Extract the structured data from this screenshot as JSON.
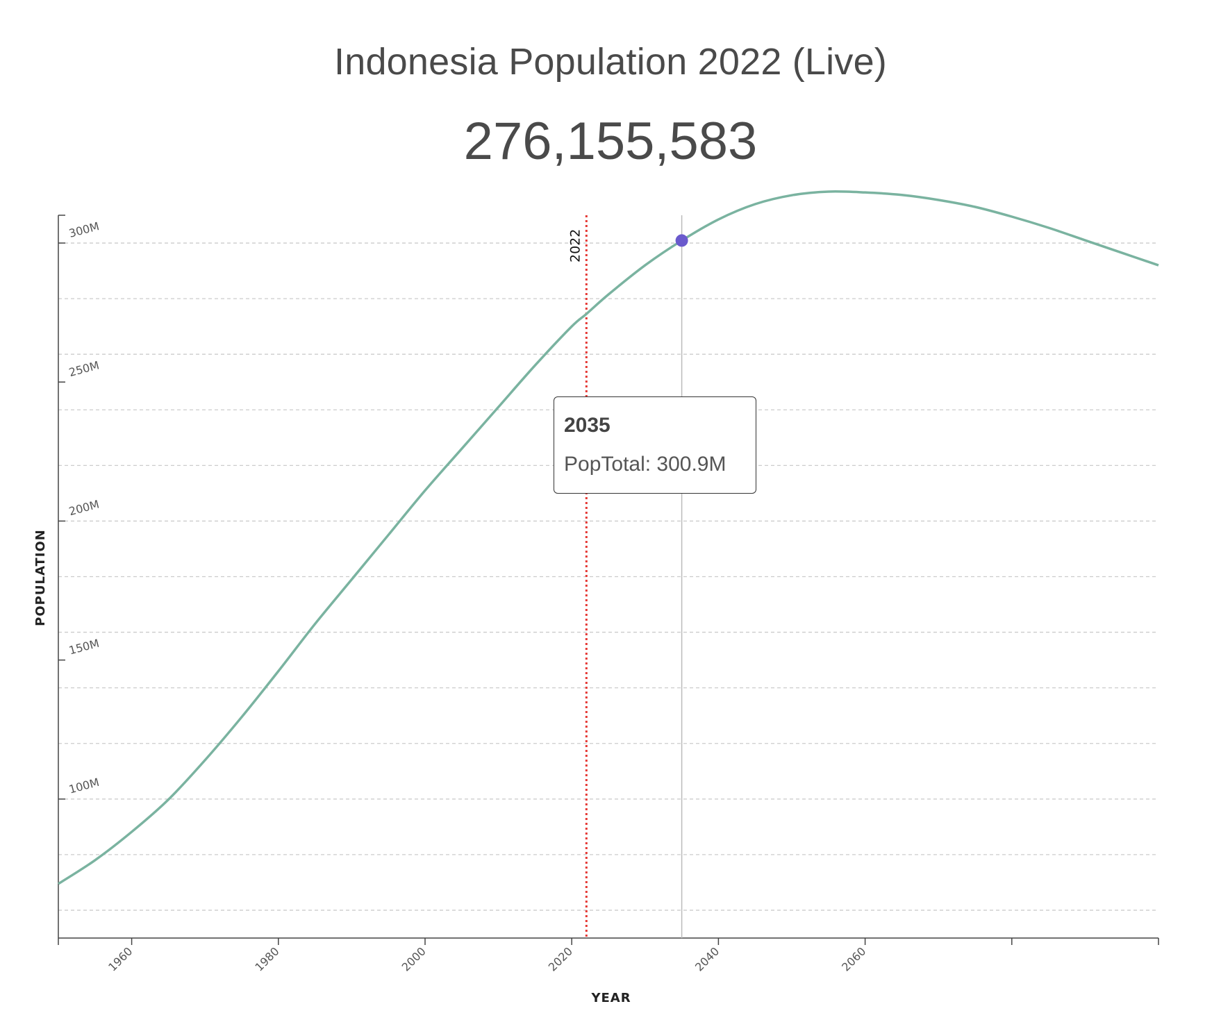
{
  "header": {
    "title": "Indonesia Population 2022 (Live)",
    "live_count": "276,155,583"
  },
  "tooltip": {
    "year": "2035",
    "series_label": "PopTotal",
    "value": "300.9M"
  },
  "colors": {
    "line": "#7ab3a0",
    "marker": "#6a5acd",
    "current_year_line": "#e53935",
    "grid": "#cccccc",
    "hover_line": "#bbbbbb"
  },
  "chart_data": {
    "type": "line",
    "title": "Indonesia Population 2022 (Live)",
    "xlabel": "YEAR",
    "ylabel": "POPULATION",
    "xlim": [
      1950,
      2100
    ],
    "ylim": [
      50,
      310
    ],
    "x_ticks": [
      1960,
      1980,
      2000,
      2020,
      2040,
      2060,
      2080,
      2100
    ],
    "x_tick_labels": [
      "1960",
      "1980",
      "2000",
      "2020",
      "2040",
      "2060",
      "",
      ""
    ],
    "y_ticks": [
      100,
      150,
      200,
      250,
      300
    ],
    "y_tick_labels": [
      "100M",
      "150M",
      "200M",
      "250M",
      "300M"
    ],
    "grid": true,
    "current_year": {
      "year": 2022,
      "label": "2022"
    },
    "highlight": {
      "x": 2035,
      "y": 300.9
    },
    "series": [
      {
        "name": "PopTotal",
        "x": [
          1950,
          1955,
          1960,
          1965,
          1970,
          1975,
          1980,
          1985,
          1990,
          1995,
          2000,
          2005,
          2010,
          2015,
          2020,
          2022,
          2025,
          2030,
          2035,
          2040,
          2045,
          2050,
          2055,
          2060,
          2065,
          2070,
          2075,
          2080,
          2085,
          2090,
          2095,
          2100
        ],
        "y": [
          69.5,
          78.0,
          88.2,
          99.8,
          114.0,
          129.5,
          146.0,
          163.0,
          179.0,
          195.0,
          211.0,
          226.0,
          241.0,
          256.0,
          270.0,
          274.5,
          281.5,
          292.0,
          300.9,
          308.5,
          314.0,
          317.2,
          318.5,
          318.2,
          317.3,
          315.5,
          313.0,
          309.5,
          305.5,
          301.0,
          296.5,
          292.0
        ]
      }
    ]
  }
}
